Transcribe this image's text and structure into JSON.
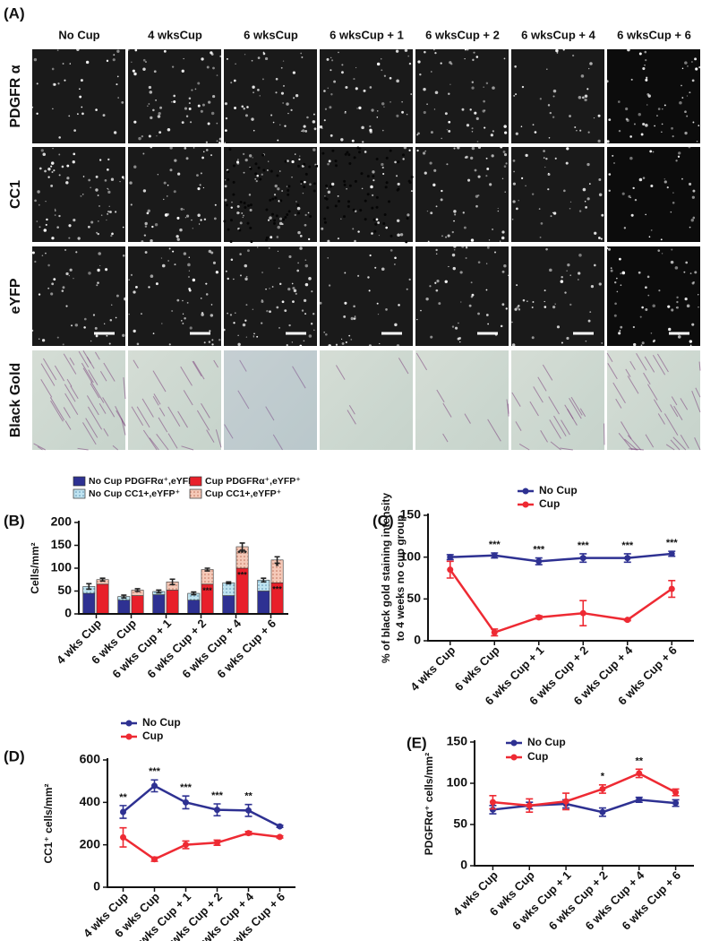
{
  "panel_a": {
    "label": "(A)",
    "columns": [
      "No Cup",
      "4 wksCup",
      "6 wksCup",
      "6 wksCup + 1",
      "6 wksCup + 2",
      "6 wksCup + 4",
      "6 wksCup + 6"
    ],
    "rows": [
      "PDGFR α",
      "CC1",
      "eYFP",
      "Black Gold"
    ]
  },
  "chart_data": [
    {
      "type": "bar",
      "label": "(B)",
      "ylabel": [
        "Cells/mm²"
      ],
      "categories": [
        "4 wks Cup",
        "6 wks Cup",
        "6 wks Cup + 1",
        "6 wks Cup + 2",
        "6 wks Cup + 4",
        "6 wks Cup + 6"
      ],
      "ylim": [
        0,
        200
      ],
      "yticks": [
        0,
        50,
        100,
        150,
        200
      ],
      "groups": [
        {
          "series": [
            {
              "name": "No Cup PDGFRα⁺,eYFP⁺",
              "color": "#2e3192",
              "values": [
                45,
                30,
                42,
                30,
                40,
                50
              ]
            },
            {
              "name": "No Cup CC1+,eYFP⁺",
              "color": "#bfe3f0",
              "hatch": true,
              "values": [
                15,
                8,
                7,
                15,
                28,
                24
              ],
              "errors": [
                6,
                3,
                3,
                3,
                2,
                4
              ]
            }
          ]
        },
        {
          "series": [
            {
              "name": "Cup PDGFRα⁺,eYFP⁺",
              "color": "#e8202a",
              "values": [
                65,
                40,
                52,
                65,
                100,
                68
              ],
              "significance": [
                null,
                null,
                null,
                "***",
                "***",
                "***"
              ],
              "significance_color": "#ffffff"
            },
            {
              "name": "Cup CC1+,eYFP⁺",
              "color": "#f5c9b8",
              "hatch": true,
              "values": [
                10,
                12,
                18,
                32,
                47,
                50
              ],
              "errors": [
                3,
                3,
                6,
                3,
                8,
                7
              ],
              "significance": [
                null,
                null,
                null,
                null,
                "***",
                "*"
              ],
              "significance_color": "#333333"
            }
          ]
        }
      ]
    },
    {
      "type": "line",
      "label": "(C)",
      "ylabel": [
        "% of black gold staining intensity",
        "to 4 weeks no cup group"
      ],
      "categories": [
        "4 wks Cup",
        "6 wks Cup",
        "6 wks Cup + 1",
        "6 wks Cup + 2",
        "6 wks Cup + 4",
        "6 wks Cup + 6"
      ],
      "ylim": [
        0,
        150
      ],
      "yticks": [
        0,
        50,
        100,
        150
      ],
      "series": [
        {
          "name": "No Cup",
          "color": "#2e3192",
          "values": [
            100,
            102,
            95,
            99,
            99,
            104
          ],
          "errors": [
            3,
            3,
            4,
            5,
            5,
            3
          ],
          "significance": [
            null,
            "***",
            "***",
            "***",
            "***",
            "***"
          ]
        },
        {
          "name": "Cup",
          "color": "#ee2a33",
          "values": [
            85,
            10,
            28,
            33,
            25,
            62
          ],
          "errors": [
            10,
            4,
            2,
            15,
            1,
            10
          ]
        }
      ]
    },
    {
      "type": "line",
      "label": "(D)",
      "ylabel": [
        "CC1⁺ cells/mm²"
      ],
      "categories": [
        "4 wks Cup",
        "6 wks Cup",
        "6 wks Cup + 1",
        "6 wks Cup + 2",
        "6 wks Cup + 4",
        "6 wks Cup + 6"
      ],
      "ylim": [
        0,
        600
      ],
      "yticks": [
        0,
        200,
        400,
        600
      ],
      "series": [
        {
          "name": "No Cup",
          "color": "#2e3192",
          "values": [
            355,
            478,
            400,
            365,
            362,
            287
          ],
          "errors": [
            30,
            28,
            30,
            28,
            28,
            5
          ],
          "significance": [
            "**",
            "***",
            "***",
            "***",
            "**",
            null
          ]
        },
        {
          "name": "Cup",
          "color": "#ee2a33",
          "values": [
            235,
            132,
            200,
            210,
            255,
            237
          ],
          "errors": [
            45,
            10,
            18,
            12,
            8,
            5
          ]
        }
      ]
    },
    {
      "type": "line",
      "label": "(E)",
      "ylabel": [
        "PDGFRα⁺ cells/mm²"
      ],
      "categories": [
        "4 wks Cup",
        "6 wks Cup",
        "6 wks Cup + 1",
        "6 wks Cup + 2",
        "6 wks Cup + 4",
        "6 wks Cup + 6"
      ],
      "ylim": [
        0,
        150
      ],
      "yticks": [
        0,
        50,
        100,
        150
      ],
      "series": [
        {
          "name": "No Cup",
          "color": "#2e3192",
          "values": [
            68,
            73,
            75,
            65,
            80,
            76
          ],
          "errors": [
            5,
            4,
            5,
            5,
            3,
            4
          ]
        },
        {
          "name": "Cup",
          "color": "#ee2a33",
          "values": [
            77,
            73,
            78,
            93,
            112,
            89
          ],
          "errors": [
            8,
            8,
            10,
            5,
            5,
            4
          ],
          "significance": [
            null,
            null,
            null,
            "*",
            "**",
            null
          ]
        }
      ]
    }
  ]
}
